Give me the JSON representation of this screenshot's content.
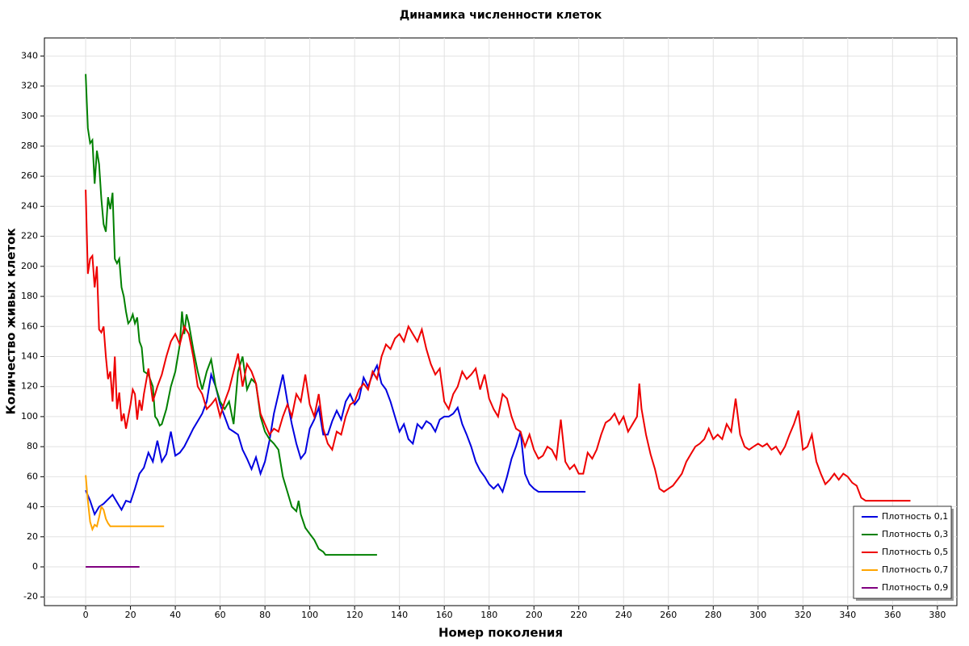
{
  "chart_data": {
    "type": "line",
    "title": "Динамика численности клеток",
    "x_label": "Номер поколения",
    "y_label": "Количество живых клеток",
    "xlim": [
      -18.4,
      388.7
    ],
    "ylim": [
      -25.8,
      352
    ],
    "xticks": [
      0,
      20,
      40,
      60,
      80,
      100,
      120,
      140,
      160,
      180,
      200,
      220,
      240,
      260,
      280,
      300,
      320,
      340,
      360,
      380
    ],
    "yticks": [
      -20,
      0,
      20,
      40,
      60,
      80,
      100,
      120,
      140,
      160,
      180,
      200,
      220,
      240,
      260,
      280,
      300,
      320,
      340
    ],
    "grid": true,
    "legend": "bottom-right",
    "series": [
      {
        "name": "Плотность 0,1",
        "color": "#0000e0",
        "x": [
          0,
          2,
          4,
          6,
          8,
          10,
          12,
          14,
          16,
          18,
          20,
          22,
          24,
          26,
          28,
          30,
          32,
          34,
          36,
          38,
          40,
          42,
          44,
          46,
          48,
          50,
          52,
          54,
          56,
          58,
          60,
          62,
          64,
          66,
          68,
          70,
          72,
          74,
          76,
          78,
          80,
          82,
          84,
          86,
          88,
          90,
          92,
          94,
          96,
          98,
          100,
          102,
          104,
          106,
          108,
          110,
          112,
          114,
          116,
          118,
          120,
          122,
          124,
          126,
          128,
          130,
          132,
          134,
          136,
          138,
          140,
          142,
          144,
          146,
          148,
          150,
          152,
          154,
          156,
          158,
          160,
          162,
          164,
          166,
          168,
          170,
          172,
          174,
          176,
          178,
          180,
          182,
          184,
          186,
          188,
          190,
          192,
          194,
          196,
          198,
          200,
          202,
          210,
          223
        ],
        "values": [
          51,
          44,
          35,
          40,
          42,
          45,
          48,
          43,
          38,
          44,
          43,
          52,
          62,
          66,
          76,
          70,
          84,
          70,
          75,
          90,
          74,
          76,
          80,
          86,
          92,
          97,
          102,
          110,
          128,
          120,
          108,
          100,
          92,
          90,
          88,
          78,
          72,
          65,
          73,
          62,
          70,
          84,
          102,
          115,
          128,
          110,
          95,
          82,
          72,
          76,
          92,
          98,
          106,
          88,
          88,
          97,
          104,
          98,
          110,
          115,
          108,
          112,
          126,
          120,
          128,
          134,
          122,
          118,
          110,
          100,
          90,
          95,
          85,
          82,
          95,
          92,
          97,
          95,
          90,
          98,
          100,
          100,
          102,
          106,
          95,
          88,
          80,
          70,
          64,
          60,
          55,
          52,
          55,
          50,
          60,
          72,
          80,
          90,
          62,
          55,
          52,
          50,
          50,
          50
        ]
      },
      {
        "name": "Плотность 0,3",
        "color": "#008000",
        "x": [
          0,
          1,
          2,
          3,
          4,
          5,
          6,
          7,
          8,
          9,
          10,
          11,
          12,
          13,
          14,
          15,
          16,
          17,
          18,
          19,
          20,
          21,
          22,
          23,
          24,
          25,
          26,
          28,
          30,
          31,
          32,
          33,
          34,
          36,
          38,
          40,
          42,
          43,
          44,
          45,
          46,
          48,
          50,
          52,
          54,
          56,
          58,
          60,
          62,
          64,
          66,
          68,
          70,
          72,
          74,
          76,
          78,
          80,
          82,
          84,
          86,
          88,
          90,
          92,
          94,
          95,
          96,
          98,
          100,
          102,
          104,
          106,
          107,
          110,
          130
        ],
        "values": [
          328,
          292,
          282,
          284,
          255,
          277,
          268,
          245,
          228,
          223,
          246,
          238,
          249,
          205,
          202,
          205,
          186,
          180,
          170,
          162,
          164,
          168,
          162,
          166,
          150,
          146,
          130,
          128,
          120,
          100,
          98,
          94,
          95,
          105,
          120,
          130,
          148,
          170,
          155,
          168,
          162,
          145,
          130,
          118,
          130,
          138,
          120,
          110,
          105,
          110,
          95,
          130,
          140,
          118,
          125,
          122,
          100,
          90,
          85,
          82,
          78,
          60,
          50,
          40,
          37,
          44,
          35,
          26,
          22,
          18,
          12,
          10,
          8,
          8,
          8
        ]
      },
      {
        "name": "Плотность 0,5",
        "color": "#ee0000",
        "x": [
          0,
          1,
          2,
          3,
          4,
          5,
          6,
          7,
          8,
          9,
          10,
          11,
          12,
          13,
          14,
          15,
          16,
          17,
          18,
          20,
          21,
          22,
          23,
          24,
          25,
          26,
          28,
          30,
          32,
          34,
          36,
          38,
          40,
          42,
          44,
          46,
          48,
          50,
          52,
          54,
          56,
          58,
          60,
          62,
          64,
          66,
          68,
          70,
          72,
          74,
          76,
          78,
          80,
          82,
          84,
          86,
          88,
          90,
          92,
          94,
          96,
          98,
          100,
          102,
          104,
          106,
          108,
          110,
          112,
          114,
          116,
          118,
          120,
          122,
          124,
          126,
          128,
          130,
          132,
          134,
          136,
          138,
          140,
          142,
          144,
          146,
          148,
          150,
          152,
          154,
          156,
          158,
          160,
          162,
          164,
          166,
          168,
          170,
          172,
          174,
          176,
          178,
          180,
          182,
          184,
          186,
          188,
          190,
          192,
          194,
          196,
          198,
          200,
          202,
          204,
          206,
          208,
          210,
          212,
          214,
          216,
          218,
          220,
          222,
          224,
          226,
          228,
          230,
          232,
          234,
          236,
          238,
          240,
          242,
          244,
          246,
          247,
          248,
          250,
          252,
          254,
          256,
          258,
          260,
          262,
          264,
          266,
          268,
          270,
          272,
          274,
          276,
          278,
          280,
          282,
          284,
          286,
          288,
          290,
          292,
          294,
          296,
          298,
          300,
          302,
          304,
          306,
          308,
          310,
          312,
          314,
          316,
          318,
          320,
          322,
          324,
          326,
          328,
          330,
          332,
          334,
          336,
          338,
          340,
          342,
          344,
          346,
          348,
          368
        ],
        "values": [
          251,
          195,
          205,
          207,
          186,
          200,
          158,
          156,
          160,
          140,
          125,
          130,
          110,
          140,
          105,
          116,
          97,
          102,
          92,
          108,
          118,
          115,
          98,
          111,
          104,
          115,
          132,
          110,
          120,
          128,
          140,
          150,
          155,
          148,
          160,
          155,
          140,
          120,
          115,
          105,
          108,
          112,
          100,
          110,
          118,
          130,
          142,
          120,
          135,
          130,
          122,
          102,
          95,
          88,
          92,
          90,
          100,
          108,
          100,
          115,
          110,
          128,
          108,
          100,
          115,
          92,
          82,
          78,
          90,
          88,
          100,
          108,
          110,
          118,
          122,
          118,
          130,
          125,
          140,
          148,
          145,
          152,
          155,
          150,
          160,
          155,
          150,
          158,
          145,
          135,
          128,
          132,
          110,
          105,
          115,
          120,
          130,
          125,
          128,
          132,
          118,
          128,
          112,
          105,
          100,
          115,
          112,
          100,
          92,
          90,
          80,
          88,
          78,
          72,
          74,
          80,
          78,
          72,
          98,
          70,
          65,
          68,
          62,
          62,
          76,
          72,
          78,
          88,
          96,
          98,
          102,
          95,
          100,
          90,
          95,
          100,
          122,
          105,
          88,
          75,
          65,
          52,
          50,
          52,
          54,
          58,
          62,
          70,
          75,
          80,
          82,
          85,
          92,
          85,
          88,
          85,
          95,
          90,
          112,
          88,
          80,
          78,
          80,
          82,
          80,
          82,
          78,
          80,
          75,
          80,
          88,
          95,
          104,
          78,
          80,
          88,
          70,
          62,
          55,
          58,
          62,
          58,
          62,
          60,
          56,
          54,
          46,
          44,
          44
        ]
      },
      {
        "name": "Плотность 0,7",
        "color": "#ffa500",
        "x": [
          0,
          1,
          2,
          3,
          4,
          5,
          6,
          7,
          8,
          9,
          10,
          11,
          15,
          35
        ],
        "values": [
          61,
          44,
          30,
          25,
          28,
          27,
          33,
          40,
          38,
          32,
          29,
          27,
          27,
          27
        ]
      },
      {
        "name": "Плотность 0,9",
        "color": "#800080",
        "x": [
          0,
          24
        ],
        "values": [
          0,
          0
        ]
      }
    ]
  }
}
